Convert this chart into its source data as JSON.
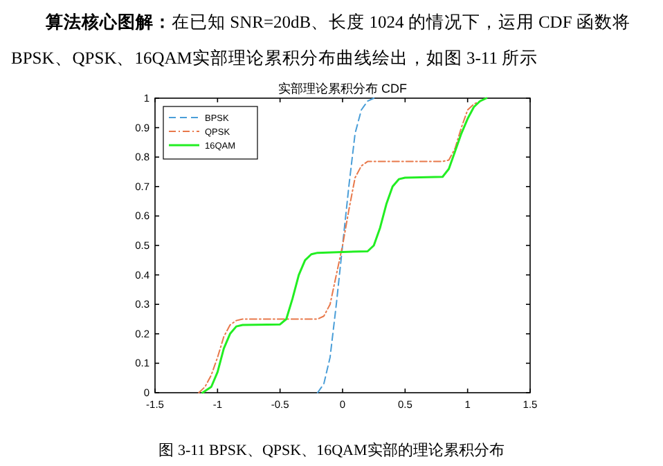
{
  "chart_data": {
    "type": "line",
    "title": "实部理论累积分布 CDF",
    "annotations": [
      "算法核心图解：在已知 SNR=20dB、长度 1024 的情况下，运用 CDF 函数将 BPSK、QPSK、16QAM实部理论累积分布曲线绘出，如图 3-11 所示",
      "图 3-11 BPSK、QPSK、16QAM实部的理论累积分布"
    ],
    "xlim": [
      -1.5,
      1.5
    ],
    "xticks": [
      -1.5,
      -1,
      -0.5,
      0,
      0.5,
      1,
      1.5
    ],
    "ylim": [
      0,
      1
    ],
    "yticks": [
      0,
      0.1,
      0.2,
      0.3,
      0.4,
      0.5,
      0.6,
      0.7,
      0.8,
      0.9,
      1
    ],
    "grid": false,
    "legend": "top left",
    "marker": "none",
    "series": [
      {
        "name": "BPSK",
        "color": "#4a9ed8",
        "line_style": "dashed",
        "x": [
          -0.2,
          -0.15,
          -0.1,
          -0.05,
          0,
          0.05,
          0.1,
          0.15,
          0.2,
          0.25
        ],
        "values": [
          0,
          0.03,
          0.12,
          0.3,
          0.5,
          0.7,
          0.88,
          0.96,
          0.99,
          1
        ]
      },
      {
        "name": "QPSK",
        "color": "#e8784a",
        "line_style": "dashdot",
        "x": [
          -1.15,
          -1.1,
          -1.05,
          -1,
          -0.95,
          -0.9,
          -0.85,
          -0.8,
          -0.5,
          -0.2,
          -0.15,
          -0.1,
          -0.05,
          0,
          0.05,
          0.1,
          0.15,
          0.2,
          0.5,
          0.8,
          0.85,
          0.9,
          0.95,
          1.0,
          1.05,
          1.1,
          1.15
        ],
        "values": [
          0,
          0.02,
          0.06,
          0.12,
          0.19,
          0.23,
          0.245,
          0.25,
          0.25,
          0.25,
          0.26,
          0.3,
          0.4,
          0.5,
          0.62,
          0.73,
          0.77,
          0.785,
          0.785,
          0.785,
          0.79,
          0.83,
          0.9,
          0.96,
          0.98,
          0.99,
          1.0
        ]
      },
      {
        "name": "16QAM",
        "color": "#22ee22",
        "line_style": "solid",
        "x": [
          -1.12,
          -1.05,
          -1,
          -0.95,
          -0.9,
          -0.85,
          -0.8,
          -0.5,
          -0.45,
          -0.4,
          -0.35,
          -0.3,
          -0.25,
          -0.2,
          0,
          0.2,
          0.25,
          0.3,
          0.35,
          0.4,
          0.45,
          0.5,
          0.8,
          0.85,
          0.9,
          0.95,
          1.0,
          1.05,
          1.1,
          1.15
        ],
        "values": [
          0,
          0.02,
          0.07,
          0.15,
          0.2,
          0.225,
          0.23,
          0.232,
          0.25,
          0.32,
          0.4,
          0.45,
          0.47,
          0.475,
          0.478,
          0.48,
          0.5,
          0.56,
          0.64,
          0.7,
          0.725,
          0.73,
          0.733,
          0.76,
          0.82,
          0.88,
          0.93,
          0.97,
          0.99,
          1.0
        ]
      }
    ]
  }
}
